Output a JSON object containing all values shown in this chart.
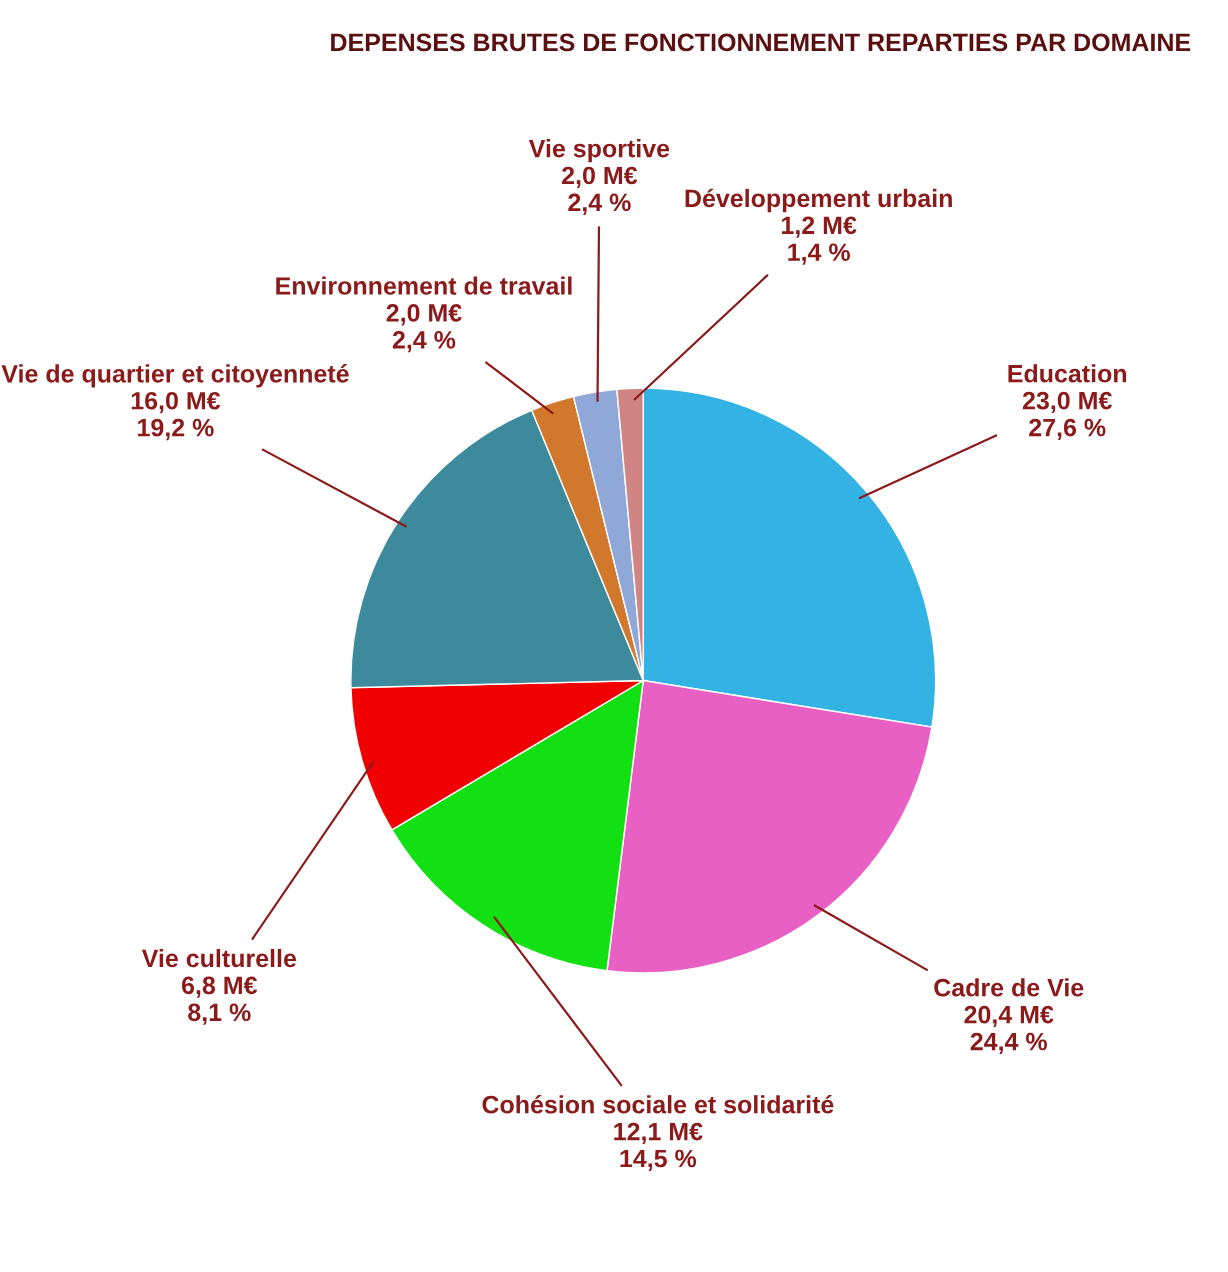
{
  "chart_data": {
    "type": "pie",
    "title": "DEPENSES BRUTES DE FONCTIONNEMENT REPARTIES PAR DOMAINE",
    "categories": [
      "Education",
      "Cadre de Vie",
      "Cohésion sociale et solidarité",
      "Vie culturelle",
      "Vie de quartier et citoyenneté",
      "Environnement de travail",
      "Vie sportive",
      "Développement urbain"
    ],
    "values": [
      23.0,
      20.4,
      12.1,
      6.8,
      16.0,
      2.0,
      2.0,
      1.2
    ],
    "value_labels": [
      "23,0 M€\n27,6 %",
      "20,4 M€\n24,4 %",
      "12,1 M€\n14,5 %",
      "6,8 M€\n8,1 %",
      "16,0 M€\n19,2 %",
      "2,0 M€\n2,4 %",
      "2,0 M€\n2,4 %",
      "1,2 M€\n1,4 %"
    ],
    "colors": [
      "#33b3e3",
      "#e860c4",
      "#12e012",
      "#f00000",
      "#3c8a9c",
      "#d2782c",
      "#90a8d8",
      "#d08484"
    ],
    "legend": false
  }
}
